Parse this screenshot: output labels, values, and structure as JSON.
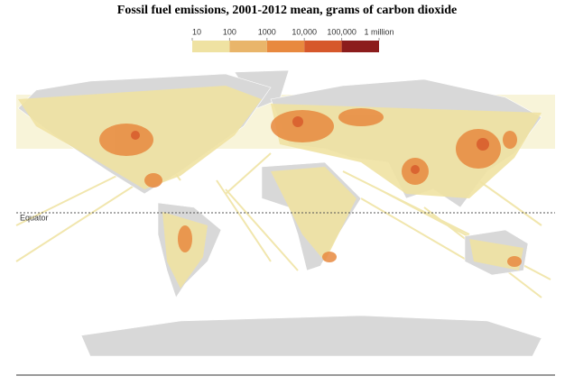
{
  "title": "Fossil fuel emissions, 2001-2012 mean, grams of carbon dioxide",
  "legend": {
    "ticks": [
      10,
      100,
      1000,
      {
        "value": 10000,
        "label": "10,000"
      },
      {
        "value": 100000,
        "label": "100,000"
      },
      {
        "value": 1000000,
        "label": "1 million"
      }
    ],
    "colors": [
      "#efe2a2",
      "#e9b56a",
      "#e8893f",
      "#d6582b",
      "#8c1c1c"
    ]
  },
  "map": {
    "equator_label": "Equator"
  }
}
